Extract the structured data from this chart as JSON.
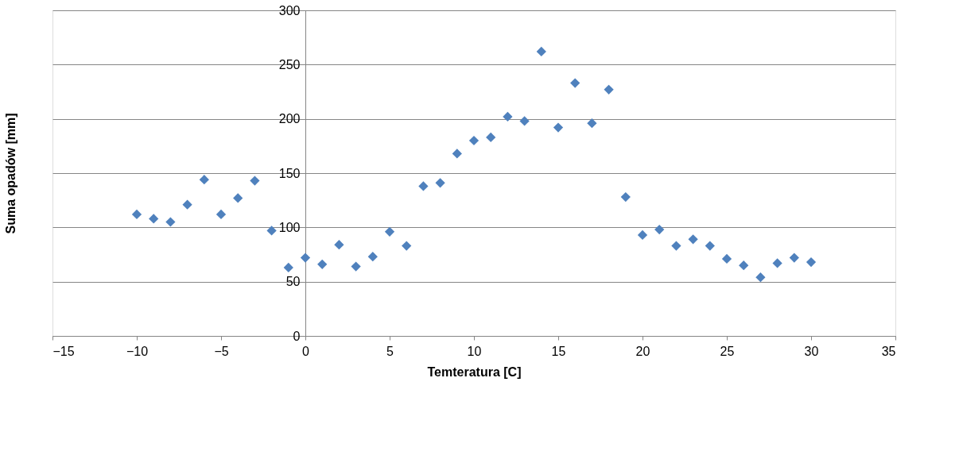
{
  "chart_data": {
    "type": "scatter",
    "xlabel": "Temteratura [C]",
    "ylabel": "Suma opadów [mm]",
    "x": [
      -10,
      -9,
      -8,
      -7,
      -6,
      -5,
      -4,
      -3,
      -2,
      -1,
      0,
      1,
      2,
      3,
      4,
      5,
      6,
      7,
      8,
      9,
      10,
      11,
      12,
      13,
      14,
      15,
      16,
      17,
      18,
      19,
      20,
      21,
      22,
      23,
      24,
      25,
      26,
      27,
      28,
      29,
      30
    ],
    "series": [
      {
        "color": "#4f81bd",
        "values": [
          112,
          108,
          105,
          121,
          144,
          112,
          127,
          143,
          97,
          63,
          72,
          66,
          84,
          64,
          73,
          96,
          83,
          138,
          141,
          168,
          180,
          183,
          202,
          198,
          262,
          192,
          233,
          196,
          227,
          128,
          93,
          98,
          83,
          89,
          83,
          71,
          65,
          54,
          67,
          72,
          68
        ]
      }
    ],
    "xlim": [
      -15,
      35
    ],
    "xticks": [
      -15,
      -10,
      -5,
      0,
      5,
      10,
      15,
      20,
      25,
      30,
      35
    ],
    "ylim": [
      0,
      300
    ],
    "yticks": [
      0,
      50,
      100,
      150,
      200,
      250,
      300
    ],
    "grid": "y",
    "marker": "diamond",
    "legend": false
  }
}
